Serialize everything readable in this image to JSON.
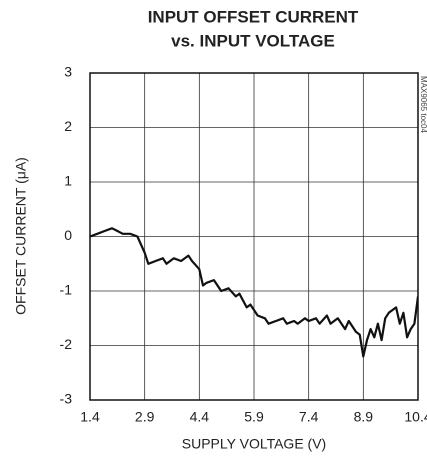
{
  "chart_data": {
    "type": "line",
    "title": "INPUT OFFSET CURRENT",
    "subtitle": "vs. INPUT VOLTAGE",
    "x_label": "SUPPLY VOLTAGE (V)",
    "y_label": "OFFSET CURRENT (μA)",
    "annotation": "MAX9065 toc04",
    "x": [
      1.4,
      1.6,
      1.8,
      2.0,
      2.1,
      2.3,
      2.5,
      2.7,
      2.9,
      3.0,
      3.2,
      3.4,
      3.5,
      3.7,
      3.9,
      4.1,
      4.2,
      4.4,
      4.5,
      4.6,
      4.8,
      5.0,
      5.2,
      5.4,
      5.5,
      5.7,
      5.8,
      6.0,
      6.2,
      6.3,
      6.5,
      6.7,
      6.8,
      7.0,
      7.1,
      7.3,
      7.4,
      7.6,
      7.7,
      7.9,
      8.0,
      8.2,
      8.4,
      8.5,
      8.7,
      8.8,
      8.9,
      9.0,
      9.1,
      9.2,
      9.3,
      9.4,
      9.5,
      9.6,
      9.8,
      9.9,
      10.0,
      10.1,
      10.2,
      10.3,
      10.4
    ],
    "series": [
      {
        "name": "offset current",
        "color": "#111111",
        "values": [
          0.0,
          0.05,
          0.1,
          0.15,
          0.12,
          0.05,
          0.05,
          0.0,
          -0.3,
          -0.5,
          -0.45,
          -0.4,
          -0.5,
          -0.4,
          -0.45,
          -0.35,
          -0.45,
          -0.6,
          -0.9,
          -0.85,
          -0.8,
          -1.0,
          -0.95,
          -1.1,
          -1.05,
          -1.3,
          -1.25,
          -1.45,
          -1.5,
          -1.6,
          -1.55,
          -1.5,
          -1.6,
          -1.55,
          -1.6,
          -1.5,
          -1.55,
          -1.5,
          -1.6,
          -1.45,
          -1.6,
          -1.5,
          -1.7,
          -1.55,
          -1.75,
          -1.8,
          -2.2,
          -1.9,
          -1.7,
          -1.85,
          -1.6,
          -1.9,
          -1.5,
          -1.4,
          -1.3,
          -1.6,
          -1.4,
          -1.85,
          -1.7,
          -1.6,
          -1.1
        ]
      }
    ],
    "xlim": [
      1.4,
      10.4
    ],
    "ylim": [
      -3,
      3
    ],
    "xticks": [
      1.4,
      2.9,
      4.4,
      5.9,
      7.4,
      8.9,
      10.4
    ],
    "yticks": [
      -3,
      -2,
      -1,
      0,
      1,
      2,
      3
    ],
    "grid": true
  }
}
